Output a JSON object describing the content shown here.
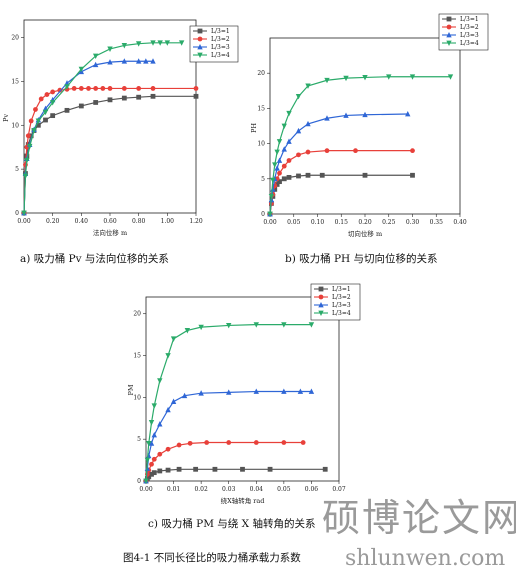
{
  "figure_title": "图4-1  不同长径比的吸力桶承载力系数",
  "watermark": {
    "text": "硕博论文网",
    "url": "shlunwen.com"
  },
  "colors": {
    "series": [
      "#555555",
      "#e8403a",
      "#2f66d6",
      "#2bab6a"
    ]
  },
  "chart_data": [
    {
      "type": "line",
      "caption": "a)   吸力桶 Pv 与法向位移的关系",
      "xlabel": "法向位移 m",
      "ylabel": "Pv",
      "xlim": [
        0,
        1.2
      ],
      "ylim": [
        0,
        22
      ],
      "xticks": [
        "0.00",
        "0.20",
        "0.40",
        "0.60",
        "0.80",
        "1.00",
        "1.20"
      ],
      "yticks": [
        "0",
        "5",
        "10",
        "15",
        "20"
      ],
      "series": [
        {
          "name": "L/3=1",
          "marker": "square",
          "x": [
            0.0,
            0.01,
            0.02,
            0.03,
            0.05,
            0.07,
            0.1,
            0.15,
            0.2,
            0.3,
            0.4,
            0.5,
            0.6,
            0.7,
            0.8,
            0.9,
            1.2
          ],
          "y": [
            0,
            4.5,
            6.5,
            7.8,
            8.8,
            9.4,
            10.0,
            10.6,
            11.1,
            11.7,
            12.2,
            12.6,
            12.9,
            13.1,
            13.2,
            13.3,
            13.3
          ]
        },
        {
          "name": "L/3=2",
          "marker": "circle",
          "x": [
            0.0,
            0.01,
            0.02,
            0.03,
            0.05,
            0.08,
            0.12,
            0.16,
            0.2,
            0.25,
            0.3,
            0.35,
            0.4,
            0.45,
            0.5,
            0.55,
            0.6,
            0.7,
            0.8,
            0.9,
            1.2
          ],
          "y": [
            0,
            5.5,
            7.5,
            8.8,
            10.5,
            11.8,
            13.0,
            13.5,
            13.8,
            14.0,
            14.1,
            14.2,
            14.2,
            14.2,
            14.2,
            14.2,
            14.2,
            14.2,
            14.2,
            14.2,
            14.2
          ]
        },
        {
          "name": "L/3=3",
          "marker": "triangle-up",
          "x": [
            0.0,
            0.01,
            0.02,
            0.04,
            0.07,
            0.1,
            0.15,
            0.2,
            0.3,
            0.4,
            0.5,
            0.6,
            0.7,
            0.8,
            0.85,
            0.9
          ],
          "y": [
            0,
            4.5,
            6.2,
            7.8,
            9.5,
            10.6,
            11.9,
            12.9,
            14.8,
            16.1,
            16.9,
            17.2,
            17.3,
            17.3,
            17.3,
            17.3
          ]
        },
        {
          "name": "L/3=4",
          "marker": "triangle-down",
          "x": [
            0.0,
            0.01,
            0.02,
            0.04,
            0.07,
            0.1,
            0.15,
            0.2,
            0.3,
            0.4,
            0.5,
            0.6,
            0.7,
            0.8,
            0.9,
            0.95,
            1.0,
            1.1
          ],
          "y": [
            0,
            4.2,
            6.0,
            7.6,
            9.4,
            10.5,
            11.5,
            12.6,
            14.4,
            16.4,
            17.9,
            18.7,
            19.1,
            19.3,
            19.4,
            19.4,
            19.4,
            19.4
          ]
        }
      ]
    },
    {
      "type": "line",
      "caption": "b)   吸力桶 PH 与切向位移的关系",
      "xlabel": "切向位移 m",
      "ylabel": "PH",
      "xlim": [
        0,
        0.4
      ],
      "ylim": [
        0,
        25
      ],
      "xticks": [
        "0.00",
        "0.05",
        "0.10",
        "0.15",
        "0.20",
        "0.25",
        "0.30",
        "0.35",
        "0.40"
      ],
      "yticks": [
        "0",
        "5",
        "10",
        "15",
        "20"
      ],
      "series": [
        {
          "name": "L/3=1",
          "marker": "square",
          "x": [
            0.0,
            0.003,
            0.006,
            0.01,
            0.015,
            0.02,
            0.03,
            0.04,
            0.06,
            0.08,
            0.11,
            0.2,
            0.3
          ],
          "y": [
            0,
            1.5,
            2.5,
            3.5,
            4.2,
            4.6,
            5.0,
            5.2,
            5.4,
            5.5,
            5.5,
            5.5,
            5.5
          ]
        },
        {
          "name": "L/3=2",
          "marker": "circle",
          "x": [
            0.0,
            0.003,
            0.006,
            0.01,
            0.015,
            0.02,
            0.03,
            0.04,
            0.06,
            0.08,
            0.12,
            0.18,
            0.3
          ],
          "y": [
            0,
            1.5,
            2.8,
            4.0,
            5.0,
            5.8,
            6.8,
            7.6,
            8.4,
            8.8,
            9.0,
            9.0,
            9.0
          ]
        },
        {
          "name": "L/3=3",
          "marker": "triangle-up",
          "x": [
            0.0,
            0.003,
            0.006,
            0.01,
            0.015,
            0.02,
            0.03,
            0.04,
            0.06,
            0.08,
            0.12,
            0.16,
            0.2,
            0.29
          ],
          "y": [
            0,
            2.0,
            3.5,
            5.0,
            6.5,
            7.6,
            9.2,
            10.3,
            11.8,
            12.8,
            13.6,
            14.0,
            14.1,
            14.2
          ]
        },
        {
          "name": "L/3=4",
          "marker": "triangle-down",
          "x": [
            0.0,
            0.003,
            0.006,
            0.01,
            0.015,
            0.02,
            0.03,
            0.04,
            0.06,
            0.08,
            0.12,
            0.16,
            0.2,
            0.25,
            0.3,
            0.38
          ],
          "y": [
            0,
            2.5,
            4.8,
            7.0,
            8.8,
            10.3,
            12.5,
            14.3,
            16.7,
            18.2,
            19.0,
            19.3,
            19.4,
            19.5,
            19.5,
            19.5
          ]
        }
      ]
    },
    {
      "type": "line",
      "caption": "c)   吸力桶 PM 与绕 X 轴转角的关系",
      "xlabel": "绕X轴转角 rad",
      "ylabel": "PM",
      "xlim": [
        0,
        0.07
      ],
      "ylim": [
        0,
        22
      ],
      "xticks": [
        "0.00",
        "0.01",
        "0.02",
        "0.03",
        "0.04",
        "0.05",
        "0.06",
        "0.07"
      ],
      "yticks": [
        "0",
        "5",
        "10",
        "15",
        "20"
      ],
      "series": [
        {
          "name": "L/3=1",
          "marker": "square",
          "x": [
            0.0,
            0.0005,
            0.001,
            0.002,
            0.003,
            0.005,
            0.008,
            0.012,
            0.018,
            0.025,
            0.035,
            0.045,
            0.065
          ],
          "y": [
            0,
            0.3,
            0.5,
            0.8,
            1.0,
            1.2,
            1.3,
            1.4,
            1.4,
            1.4,
            1.4,
            1.4,
            1.4
          ]
        },
        {
          "name": "L/3=2",
          "marker": "circle",
          "x": [
            0.0,
            0.0005,
            0.001,
            0.002,
            0.003,
            0.005,
            0.008,
            0.012,
            0.016,
            0.022,
            0.03,
            0.04,
            0.05,
            0.057
          ],
          "y": [
            0,
            0.8,
            1.3,
            2.0,
            2.6,
            3.2,
            3.8,
            4.3,
            4.5,
            4.6,
            4.6,
            4.6,
            4.6,
            4.6
          ]
        },
        {
          "name": "L/3=3",
          "marker": "triangle-up",
          "x": [
            0.0,
            0.0005,
            0.001,
            0.002,
            0.003,
            0.005,
            0.008,
            0.01,
            0.014,
            0.02,
            0.03,
            0.04,
            0.05,
            0.056,
            0.06
          ],
          "y": [
            0,
            1.5,
            3.0,
            4.5,
            5.5,
            6.8,
            8.5,
            9.5,
            10.2,
            10.5,
            10.6,
            10.7,
            10.7,
            10.7,
            10.7
          ]
        },
        {
          "name": "L/3=4",
          "marker": "triangle-down",
          "x": [
            0.0,
            0.0005,
            0.001,
            0.002,
            0.003,
            0.005,
            0.008,
            0.01,
            0.015,
            0.02,
            0.03,
            0.04,
            0.05,
            0.06
          ],
          "y": [
            0,
            2.5,
            4.5,
            7.0,
            9.0,
            12.0,
            15.0,
            17.0,
            18.0,
            18.4,
            18.6,
            18.7,
            18.7,
            18.7
          ]
        }
      ]
    }
  ]
}
